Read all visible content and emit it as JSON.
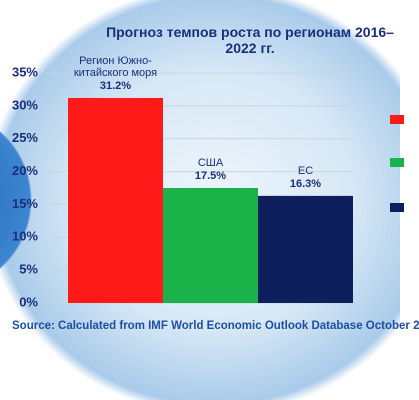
{
  "chart_data": {
    "type": "bar",
    "title": "Прогноз темпов роста по регионам 2016–2022 гг.",
    "categories": [
      "Регион Южно-китайского моря",
      "США",
      "ЕС"
    ],
    "values": [
      31.2,
      17.5,
      16.3
    ],
    "value_labels": [
      "31.2%",
      "17.5%",
      "16.3%"
    ],
    "colors": [
      "#ff1a1a",
      "#19b34a",
      "#0d1f5c"
    ],
    "ylim": [
      0,
      35
    ],
    "yticks": [
      {
        "value": 0,
        "label": "0%"
      },
      {
        "value": 5,
        "label": "5%"
      },
      {
        "value": 10,
        "label": "10%"
      },
      {
        "value": 15,
        "label": "15%"
      },
      {
        "value": 20,
        "label": "20%"
      },
      {
        "value": 25,
        "label": "25%"
      },
      {
        "value": 30,
        "label": "30%"
      },
      {
        "value": 35,
        "label": "35%"
      }
    ],
    "grid": true,
    "source": "Source: Calculated from IMF World Economic Outlook Database October 2"
  }
}
